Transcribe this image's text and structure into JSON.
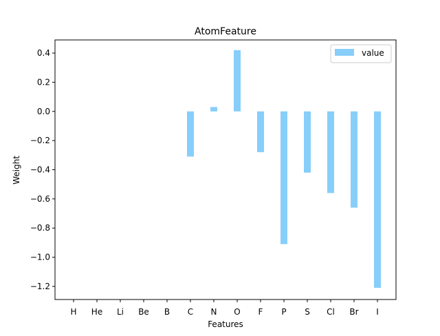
{
  "chart_data": {
    "type": "bar",
    "title": "AtomFeature",
    "xlabel": "Features",
    "ylabel": "Weight",
    "categories": [
      "H",
      "He",
      "Li",
      "Be",
      "B",
      "C",
      "N",
      "O",
      "F",
      "P",
      "S",
      "Cl",
      "Br",
      "I"
    ],
    "series": [
      {
        "name": "value",
        "values": [
          0,
          0,
          0,
          0,
          0,
          -0.31,
          0.03,
          0.42,
          -0.28,
          -0.91,
          -0.42,
          -0.56,
          -0.66,
          -1.21
        ]
      }
    ],
    "ylim": [
      -1.29,
      0.49
    ],
    "yticks": [
      0.4,
      0.2,
      0.0,
      -0.2,
      -0.4,
      -0.6,
      -0.8,
      -1.0,
      -1.2
    ],
    "ytick_labels": [
      "0.4",
      "0.2",
      "0.0",
      "−0.2",
      "−0.4",
      "−0.6",
      "−0.8",
      "−1.0",
      "−1.2"
    ],
    "grid": false,
    "legend_position": "top-right",
    "colors": {
      "bar": "#87cefa",
      "axis": "#000000",
      "background": "#ffffff"
    }
  }
}
